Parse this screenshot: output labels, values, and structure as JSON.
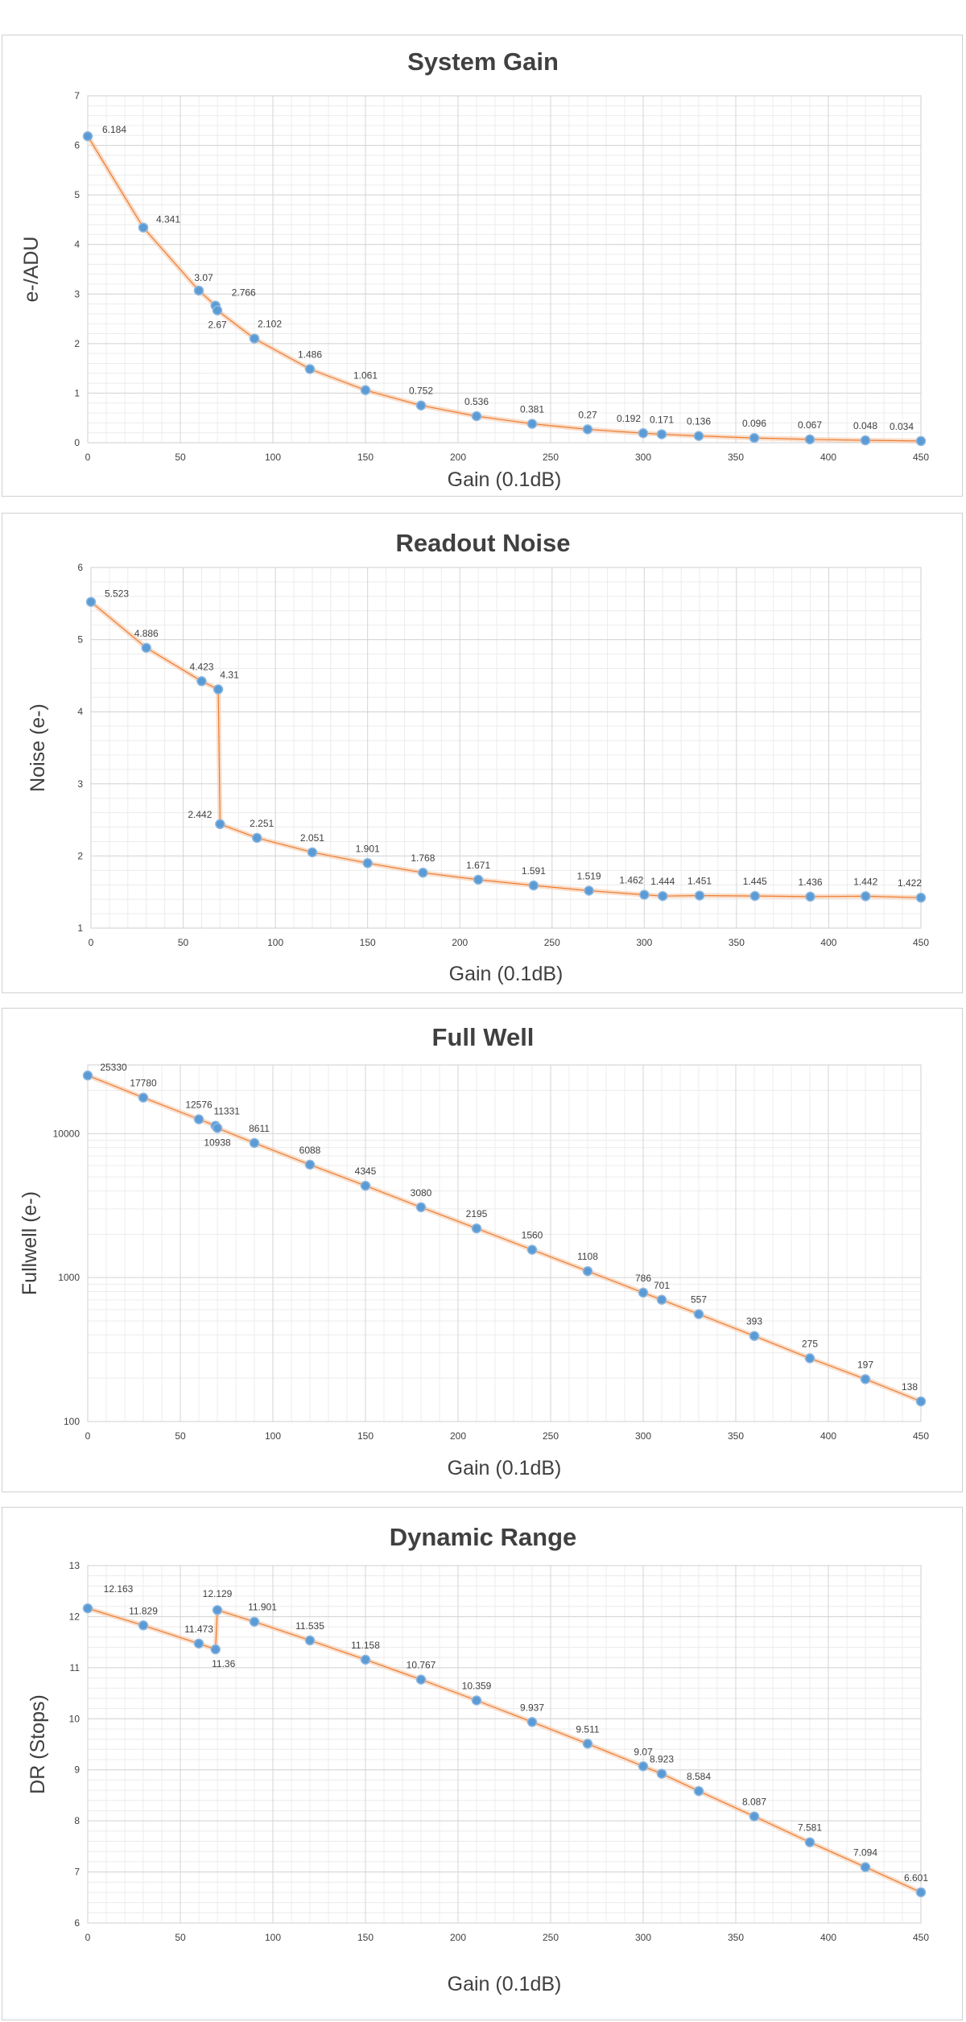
{
  "chart_data": [
    {
      "type": "line",
      "title": "System Gain",
      "xlabel": "Gain (0.1dB)",
      "ylabel": "e-/ADU",
      "xlim": [
        0,
        450
      ],
      "ylim": [
        0,
        7
      ],
      "x_ticks": [
        0,
        50,
        100,
        150,
        200,
        250,
        300,
        350,
        400,
        450
      ],
      "y_ticks": [
        0,
        1,
        2,
        3,
        4,
        5,
        6,
        7
      ],
      "y_scale": "linear",
      "series": [
        {
          "x": [
            0,
            30,
            60,
            69,
            70,
            90,
            120,
            150,
            180,
            210,
            240,
            270,
            300,
            310,
            330,
            360,
            390,
            420,
            450
          ],
          "y": [
            6.184,
            4.341,
            3.07,
            2.766,
            2.67,
            2.102,
            1.486,
            1.061,
            0.752,
            0.536,
            0.381,
            0.27,
            0.192,
            0.171,
            0.136,
            0.096,
            0.067,
            0.048,
            0.034
          ],
          "labels": [
            "6.184",
            "4.341",
            "3.07",
            "2.766",
            "2.67",
            "2.102",
            "1.486",
            "1.061",
            "0.752",
            "0.536",
            "0.381",
            "0.27",
            "0.192",
            "0.171",
            "0.136",
            "0.096",
            "0.067",
            "0.048",
            "0.034"
          ]
        }
      ],
      "grid": true
    },
    {
      "type": "line",
      "title": "Readout Noise",
      "xlabel": "Gain (0.1dB)",
      "ylabel": "Noise (e-)",
      "xlim": [
        0,
        450
      ],
      "ylim": [
        1,
        6
      ],
      "x_ticks": [
        0,
        50,
        100,
        150,
        200,
        250,
        300,
        350,
        400,
        450
      ],
      "y_ticks": [
        1,
        2,
        3,
        4,
        5,
        6
      ],
      "y_scale": "linear",
      "series": [
        {
          "x": [
            0,
            30,
            60,
            69,
            70,
            90,
            120,
            150,
            180,
            210,
            240,
            270,
            300,
            310,
            330,
            360,
            390,
            420,
            450
          ],
          "y": [
            5.523,
            4.886,
            4.423,
            4.31,
            2.442,
            2.251,
            2.051,
            1.901,
            1.768,
            1.671,
            1.591,
            1.519,
            1.462,
            1.444,
            1.451,
            1.445,
            1.436,
            1.442,
            1.422
          ],
          "labels": [
            "5.523",
            "4.886",
            "4.423",
            "4.31",
            "2.442",
            "2.251",
            "2.051",
            "1.901",
            "1.768",
            "1.671",
            "1.591",
            "1.519",
            "1.462",
            "1.444",
            "1.451",
            "1.445",
            "1.436",
            "1.442",
            "1.422"
          ]
        }
      ],
      "grid": true
    },
    {
      "type": "line",
      "title": "Full Well",
      "xlabel": "Gain (0.1dB)",
      "ylabel": "Fullwell (e-)",
      "xlim": [
        0,
        450
      ],
      "ylim": [
        100,
        30000
      ],
      "x_ticks": [
        0,
        50,
        100,
        150,
        200,
        250,
        300,
        350,
        400,
        450
      ],
      "y_ticks": [
        100,
        1000,
        10000
      ],
      "y_scale": "log",
      "series": [
        {
          "x": [
            0,
            30,
            60,
            69,
            70,
            90,
            120,
            150,
            180,
            210,
            240,
            270,
            300,
            310,
            330,
            360,
            390,
            420,
            450
          ],
          "y": [
            25330,
            17780,
            12576,
            11331,
            10938,
            8611,
            6088,
            4345,
            3080,
            2195,
            1560,
            1108,
            786,
            701,
            557,
            393,
            275,
            197,
            138
          ],
          "labels": [
            "25330",
            "17780",
            "12576",
            "11331",
            "10938",
            "8611",
            "6088",
            "4345",
            "3080",
            "2195",
            "1560",
            "1108",
            "786",
            "701",
            "557",
            "393",
            "275",
            "197",
            "138"
          ]
        }
      ],
      "grid": true
    },
    {
      "type": "line",
      "title": "Dynamic Range",
      "xlabel": "Gain (0.1dB)",
      "ylabel": "DR (Stops)",
      "xlim": [
        0,
        450
      ],
      "ylim": [
        6,
        13
      ],
      "x_ticks": [
        0,
        50,
        100,
        150,
        200,
        250,
        300,
        350,
        400,
        450
      ],
      "y_ticks": [
        6,
        7,
        8,
        9,
        10,
        11,
        12,
        13
      ],
      "y_scale": "linear",
      "series": [
        {
          "x": [
            0,
            30,
            60,
            69,
            70,
            90,
            120,
            150,
            180,
            210,
            240,
            270,
            300,
            310,
            330,
            360,
            390,
            420,
            450
          ],
          "y": [
            12.163,
            11.829,
            11.473,
            11.36,
            12.129,
            11.901,
            11.535,
            11.158,
            10.767,
            10.359,
            9.937,
            9.511,
            9.07,
            8.923,
            8.584,
            8.087,
            7.581,
            7.094,
            6.601
          ],
          "labels": [
            "12.163",
            "11.829",
            "11.473",
            "11.36",
            "12.129",
            "11.901",
            "11.535",
            "11.158",
            "10.767",
            "10.359",
            "9.937",
            "9.511",
            "9.07",
            "8.923",
            "8.584",
            "8.087",
            "7.581",
            "7.094",
            "6.601"
          ]
        }
      ],
      "grid": true
    }
  ],
  "colors": {
    "line": "#ed7d31",
    "marker": "#5b9bd5",
    "grid": "#d4d4d4",
    "text": "#404040"
  }
}
